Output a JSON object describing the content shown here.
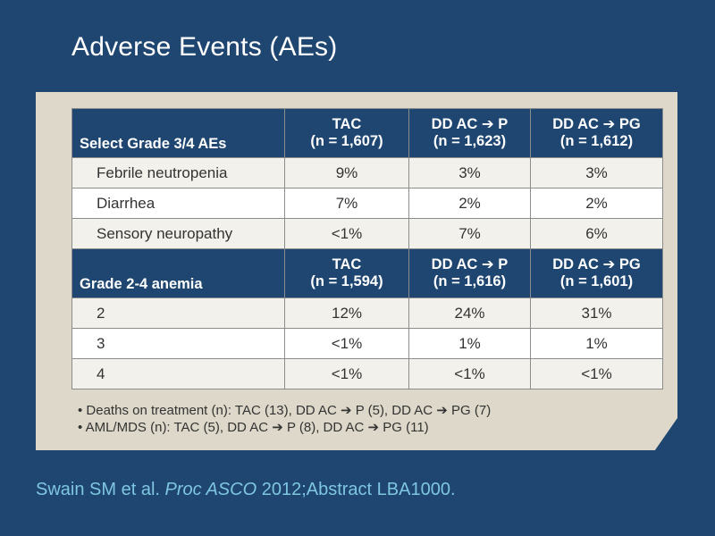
{
  "slide": {
    "title": "Adverse Events (AEs)"
  },
  "table": {
    "sections": [
      {
        "header_label": "Select Grade 3/4 AEs",
        "columns": [
          {
            "name": "TAC",
            "n": "(n = 1,607)"
          },
          {
            "name": "DD AC ➔ P",
            "n": "(n = 1,623)"
          },
          {
            "name": "DD AC ➔ PG",
            "n": "(n = 1,612)"
          }
        ],
        "rows": [
          {
            "label": "Febrile neutropenia",
            "values": [
              "9%",
              "3%",
              "3%"
            ]
          },
          {
            "label": "Diarrhea",
            "values": [
              "7%",
              "2%",
              "2%"
            ]
          },
          {
            "label": "Sensory neuropathy",
            "values": [
              "<1%",
              "7%",
              "6%"
            ]
          }
        ]
      },
      {
        "header_label": "Grade 2-4 anemia",
        "columns": [
          {
            "name": "TAC",
            "n": "(n = 1,594)"
          },
          {
            "name": "DD AC ➔ P",
            "n": "(n = 1,616)"
          },
          {
            "name": "DD AC ➔ PG",
            "n": "(n = 1,601)"
          }
        ],
        "rows": [
          {
            "label": "2",
            "values": [
              "12%",
              "24%",
              "31%"
            ]
          },
          {
            "label": "3",
            "values": [
              "<1%",
              "1%",
              "1%"
            ]
          },
          {
            "label": "4",
            "values": [
              "<1%",
              "<1%",
              "<1%"
            ]
          }
        ]
      }
    ]
  },
  "notes": [
    "• Deaths on treatment (n): TAC (13), DD AC ➔ P (5), DD AC ➔ PG (7)",
    "• AML/MDS (n): TAC (5), DD AC ➔ P (8), DD AC ➔ PG (11)"
  ],
  "citation": {
    "authors": "Swain SM et al.",
    "journal": "Proc ASCO",
    "detail": "2012;Abstract LBA1000."
  }
}
